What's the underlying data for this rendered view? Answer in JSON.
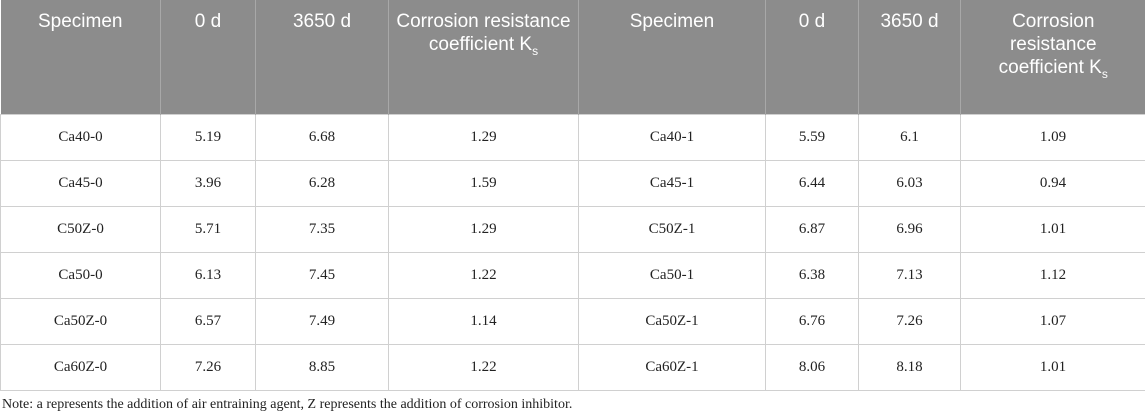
{
  "table": {
    "header": [
      {
        "text": "Specimen"
      },
      {
        "text": "0 d"
      },
      {
        "text": "3650 d"
      },
      {
        "text": "Corrosion resistance coefficient K",
        "sub": "s"
      },
      {
        "text": "Specimen"
      },
      {
        "text": "0 d"
      },
      {
        "text": "3650 d"
      },
      {
        "text": "Corrosion resistance coefficient K",
        "sub": "s"
      }
    ],
    "rows": [
      [
        "Ca40-0",
        "5.19",
        "6.68",
        "1.29",
        "Ca40-1",
        "5.59",
        "6.1",
        "1.09"
      ],
      [
        "Ca45-0",
        "3.96",
        "6.28",
        "1.59",
        "Ca45-1",
        "6.44",
        "6.03",
        "0.94"
      ],
      [
        "C50Z-0",
        "5.71",
        "7.35",
        "1.29",
        "C50Z-1",
        "6.87",
        "6.96",
        "1.01"
      ],
      [
        "Ca50-0",
        "6.13",
        "7.45",
        "1.22",
        "Ca50-1",
        "6.38",
        "7.13",
        "1.12"
      ],
      [
        "Ca50Z-0",
        "6.57",
        "7.49",
        "1.14",
        "Ca50Z-1",
        "6.76",
        "7.26",
        "1.07"
      ],
      [
        "Ca60Z-0",
        "7.26",
        "8.85",
        "1.22",
        "Ca60Z-1",
        "8.06",
        "8.18",
        "1.01"
      ]
    ]
  },
  "note": "Note: a represents the addition of air entraining agent, Z represents the addition of corrosion inhibitor."
}
